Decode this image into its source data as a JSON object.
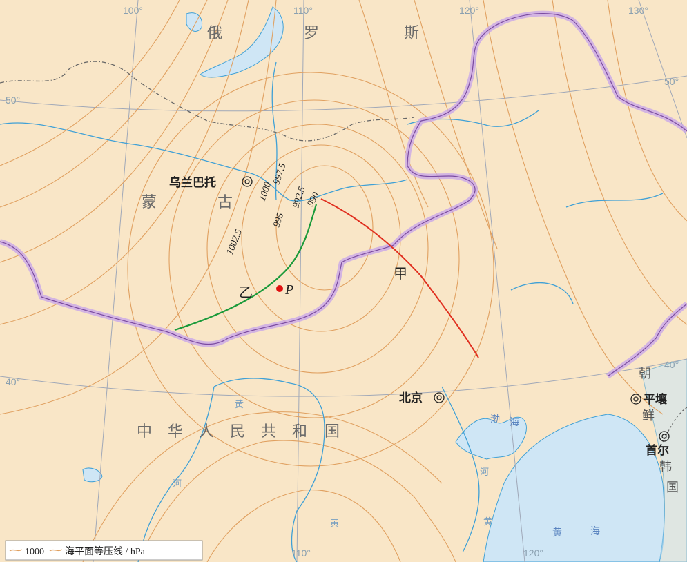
{
  "colors": {
    "land": "#f9e6c7",
    "sea": "#cfe6f5",
    "isobar": "#e0a060",
    "river": "#3fa0d6",
    "border": "#b07ad0",
    "front_jia": "#e03020",
    "front_yi": "#1a9a3a",
    "point": "#e01010"
  },
  "graticule": {
    "lon_labels": [
      "100°",
      "110°",
      "120°",
      "130°",
      "110°",
      "120°"
    ],
    "lat_labels": [
      "50°",
      "50°",
      "40°",
      "40°"
    ]
  },
  "countries": {
    "russia": [
      "俄",
      "罗",
      "斯"
    ],
    "mongolia": [
      "蒙",
      "古"
    ],
    "china": [
      "中",
      "华",
      "人",
      "民",
      "共",
      "和",
      "国"
    ],
    "korea_north": [
      "朝",
      "鲜"
    ],
    "korea_south": [
      "韩",
      "国"
    ]
  },
  "cities": {
    "ulaanbaatar": "乌兰巴托",
    "beijing": "北京",
    "pyongyang": "平壤",
    "seoul": "首尔"
  },
  "seas": {
    "bohai": [
      "渤",
      "海"
    ],
    "yellow_sea": [
      "黄",
      "海"
    ]
  },
  "rivers": {
    "huang": "黄",
    "he": "河"
  },
  "isobars": {
    "l1": "1002.5",
    "l2": "1000",
    "l3": "997.5",
    "l4": "995",
    "l5": "992.5",
    "l6": "990"
  },
  "fronts": {
    "jia": "甲",
    "yi": "乙"
  },
  "point": {
    "label": "P"
  },
  "legend": {
    "value": "1000",
    "text": "海平面等压线 / hPa"
  }
}
